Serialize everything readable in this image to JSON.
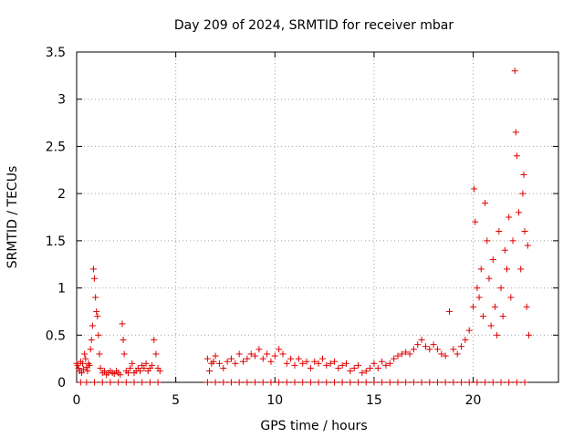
{
  "chart_data": {
    "type": "scatter",
    "title": "Day 209 of 2024, SRMTID for receiver mbar",
    "xlabel": "GPS time / hours",
    "ylabel": "SRMTID / TECUs",
    "xlim": [
      0,
      24.3
    ],
    "ylim": [
      0,
      3.5
    ],
    "x_ticks": [
      0,
      5,
      10,
      15,
      20
    ],
    "y_ticks": [
      0,
      0.5,
      1,
      1.5,
      2,
      2.5,
      3,
      3.5
    ],
    "x_tick_labels": [
      "0",
      "5",
      "10",
      "15",
      "20"
    ],
    "y_tick_labels": [
      "0",
      "0.5",
      "1",
      "1.5",
      "2",
      "2.5",
      "3",
      "3.5"
    ],
    "grid": true,
    "marker": "plus",
    "series": [
      {
        "name": "SRMTID",
        "color": "#e00000",
        "points": [
          [
            0.0,
            0.2
          ],
          [
            0.05,
            0.18
          ],
          [
            0.1,
            0.15
          ],
          [
            0.15,
            0.12
          ],
          [
            0.2,
            0.22
          ],
          [
            0.25,
            0.1
          ],
          [
            0.3,
            0.2
          ],
          [
            0.35,
            0.14
          ],
          [
            0.4,
            0.3
          ],
          [
            0.45,
            0.25
          ],
          [
            0.5,
            0.16
          ],
          [
            0.55,
            0.12
          ],
          [
            0.6,
            0.2
          ],
          [
            0.65,
            0.18
          ],
          [
            0.7,
            0.35
          ],
          [
            0.75,
            0.45
          ],
          [
            0.8,
            0.6
          ],
          [
            0.85,
            1.2
          ],
          [
            0.9,
            1.1
          ],
          [
            0.95,
            0.9
          ],
          [
            1.0,
            0.75
          ],
          [
            1.05,
            0.7
          ],
          [
            1.1,
            0.5
          ],
          [
            1.15,
            0.3
          ],
          [
            1.2,
            0.15
          ],
          [
            1.3,
            0.1
          ],
          [
            1.4,
            0.12
          ],
          [
            1.5,
            0.08
          ],
          [
            1.6,
            0.1
          ],
          [
            1.7,
            0.12
          ],
          [
            1.8,
            0.1
          ],
          [
            1.9,
            0.09
          ],
          [
            2.0,
            0.12
          ],
          [
            2.1,
            0.1
          ],
          [
            2.2,
            0.08
          ],
          [
            2.3,
            0.62
          ],
          [
            2.35,
            0.45
          ],
          [
            2.4,
            0.3
          ],
          [
            2.5,
            0.12
          ],
          [
            2.6,
            0.1
          ],
          [
            2.7,
            0.15
          ],
          [
            2.8,
            0.2
          ],
          [
            2.9,
            0.1
          ],
          [
            3.0,
            0.12
          ],
          [
            3.1,
            0.15
          ],
          [
            3.2,
            0.12
          ],
          [
            3.3,
            0.18
          ],
          [
            3.4,
            0.15
          ],
          [
            3.5,
            0.2
          ],
          [
            3.6,
            0.12
          ],
          [
            3.7,
            0.15
          ],
          [
            3.8,
            0.18
          ],
          [
            3.9,
            0.45
          ],
          [
            4.0,
            0.3
          ],
          [
            4.1,
            0.15
          ],
          [
            4.2,
            0.12
          ],
          [
            6.6,
            0.25
          ],
          [
            6.7,
            0.12
          ],
          [
            6.8,
            0.2
          ],
          [
            6.9,
            0.22
          ],
          [
            7.0,
            0.28
          ],
          [
            7.2,
            0.2
          ],
          [
            7.4,
            0.15
          ],
          [
            7.6,
            0.22
          ],
          [
            7.8,
            0.25
          ],
          [
            8.0,
            0.2
          ],
          [
            8.2,
            0.3
          ],
          [
            8.4,
            0.22
          ],
          [
            8.6,
            0.25
          ],
          [
            8.8,
            0.3
          ],
          [
            9.0,
            0.28
          ],
          [
            9.2,
            0.35
          ],
          [
            9.4,
            0.25
          ],
          [
            9.6,
            0.3
          ],
          [
            9.8,
            0.22
          ],
          [
            10.0,
            0.28
          ],
          [
            10.2,
            0.35
          ],
          [
            10.4,
            0.3
          ],
          [
            10.6,
            0.2
          ],
          [
            10.8,
            0.25
          ],
          [
            11.0,
            0.18
          ],
          [
            11.2,
            0.25
          ],
          [
            11.4,
            0.2
          ],
          [
            11.6,
            0.22
          ],
          [
            11.8,
            0.15
          ],
          [
            12.0,
            0.22
          ],
          [
            12.2,
            0.2
          ],
          [
            12.4,
            0.25
          ],
          [
            12.6,
            0.18
          ],
          [
            12.8,
            0.2
          ],
          [
            13.0,
            0.22
          ],
          [
            13.2,
            0.15
          ],
          [
            13.4,
            0.18
          ],
          [
            13.6,
            0.2
          ],
          [
            13.8,
            0.12
          ],
          [
            14.0,
            0.15
          ],
          [
            14.2,
            0.18
          ],
          [
            14.4,
            0.1
          ],
          [
            14.6,
            0.12
          ],
          [
            14.8,
            0.15
          ],
          [
            15.0,
            0.2
          ],
          [
            15.2,
            0.15
          ],
          [
            15.4,
            0.22
          ],
          [
            15.6,
            0.18
          ],
          [
            15.8,
            0.2
          ],
          [
            16.0,
            0.25
          ],
          [
            16.2,
            0.28
          ],
          [
            16.4,
            0.3
          ],
          [
            16.6,
            0.32
          ],
          [
            16.8,
            0.3
          ],
          [
            17.0,
            0.35
          ],
          [
            17.2,
            0.4
          ],
          [
            17.4,
            0.45
          ],
          [
            17.6,
            0.38
          ],
          [
            17.8,
            0.35
          ],
          [
            18.0,
            0.4
          ],
          [
            18.2,
            0.35
          ],
          [
            18.4,
            0.3
          ],
          [
            18.6,
            0.28
          ],
          [
            18.8,
            0.75
          ],
          [
            19.0,
            0.35
          ],
          [
            19.2,
            0.3
          ],
          [
            19.4,
            0.38
          ],
          [
            19.6,
            0.45
          ],
          [
            19.8,
            0.55
          ],
          [
            20.0,
            0.8
          ],
          [
            20.05,
            2.05
          ],
          [
            20.1,
            1.7
          ],
          [
            20.2,
            1.0
          ],
          [
            20.3,
            0.9
          ],
          [
            20.4,
            1.2
          ],
          [
            20.5,
            0.7
          ],
          [
            20.6,
            1.9
          ],
          [
            20.7,
            1.5
          ],
          [
            20.8,
            1.1
          ],
          [
            20.9,
            0.6
          ],
          [
            21.0,
            1.3
          ],
          [
            21.1,
            0.8
          ],
          [
            21.2,
            0.5
          ],
          [
            21.3,
            1.6
          ],
          [
            21.4,
            1.0
          ],
          [
            21.5,
            0.7
          ],
          [
            21.6,
            1.4
          ],
          [
            21.7,
            1.2
          ],
          [
            21.8,
            1.75
          ],
          [
            21.9,
            0.9
          ],
          [
            22.0,
            1.5
          ],
          [
            22.1,
            3.3
          ],
          [
            22.15,
            2.65
          ],
          [
            22.2,
            2.4
          ],
          [
            22.3,
            1.8
          ],
          [
            22.4,
            1.2
          ],
          [
            22.5,
            2.0
          ],
          [
            22.55,
            2.2
          ],
          [
            22.6,
            1.6
          ],
          [
            22.7,
            0.8
          ],
          [
            22.75,
            1.45
          ],
          [
            22.8,
            0.5
          ]
        ],
        "zero_points_x": [
          0.2,
          0.5,
          0.9,
          1.3,
          1.7,
          2.1,
          2.5,
          2.9,
          3.3,
          3.7,
          4.1,
          6.6,
          7.0,
          7.4,
          7.8,
          8.2,
          8.6,
          9.0,
          9.4,
          9.8,
          10.2,
          10.6,
          11.0,
          11.4,
          11.8,
          12.2,
          12.6,
          13.0,
          13.4,
          13.8,
          14.2,
          14.6,
          15.0,
          15.4,
          15.8,
          16.2,
          16.6,
          17.0,
          17.4,
          17.8,
          18.2,
          18.6,
          19.0,
          19.4,
          19.8,
          20.2,
          20.6,
          21.0,
          21.4,
          21.8,
          22.2,
          22.6
        ]
      }
    ]
  }
}
